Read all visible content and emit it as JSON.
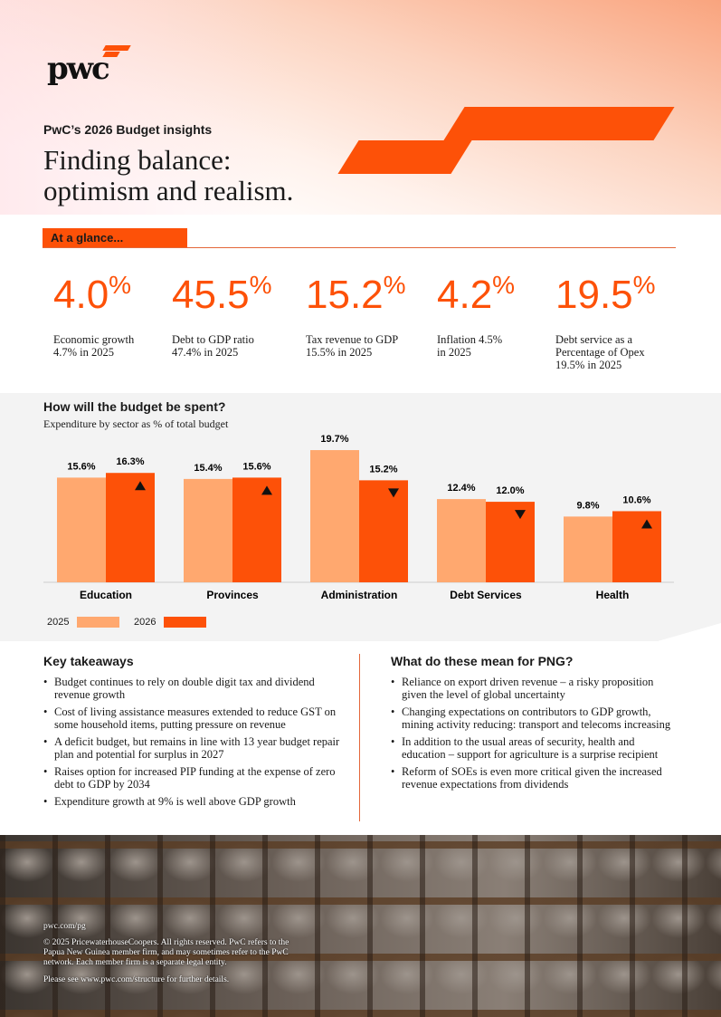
{
  "brand": {
    "logo_text": "pwc"
  },
  "header": {
    "kicker": "PwC’s 2026 Budget insights",
    "title_line1": "Finding balance:",
    "title_line2": "optimism and realism."
  },
  "glance": {
    "label": "At a glance...",
    "stats": [
      {
        "value": "4.0",
        "unit": "%",
        "label": "Economic growth\n4.7% in 2025"
      },
      {
        "value": "45.5",
        "unit": "%",
        "label": "Debt to GDP ratio\n47.4% in 2025"
      },
      {
        "value": "15.2",
        "unit": "%",
        "label": "Tax revenue to GDP\n15.5% in 2025"
      },
      {
        "value": "4.2",
        "unit": "%",
        "label": "Inflation 4.5%\nin 2025"
      },
      {
        "value": "19.5",
        "unit": "%",
        "label": "Debt service as a\nPercentage of Opex\n19.5% in 2025"
      }
    ]
  },
  "chart_data": {
    "type": "bar",
    "title": "How will the budget be spent?",
    "subtitle": "Expenditure by sector as % of total budget",
    "categories": [
      "Education",
      "Provinces",
      "Administration",
      "Debt Services",
      "Health"
    ],
    "series": [
      {
        "name": "2025",
        "color": "#ffa86f",
        "values": [
          15.6,
          15.4,
          19.7,
          12.4,
          9.8
        ],
        "labels": [
          "15.6%",
          "15.4%",
          "19.7%",
          "12.4%",
          "9.8%"
        ]
      },
      {
        "name": "2026",
        "color": "#fd5108",
        "values": [
          16.3,
          15.6,
          15.2,
          12.0,
          10.6
        ],
        "labels": [
          "16.3%",
          "15.6%",
          "15.2%",
          "12.0%",
          "10.6%"
        ],
        "trend": [
          "up",
          "up",
          "down",
          "down",
          "up"
        ]
      }
    ],
    "ylim": [
      0,
      20
    ],
    "legend": "bottom-left"
  },
  "takeaways": {
    "title": "Key takeaways",
    "items": [
      "Budget continues to rely on double digit tax and dividend revenue growth",
      "Cost of living assistance measures extended to reduce GST on some household items, putting pressure on revenue",
      "A deficit budget, but remains in line with 13 year budget repair plan and potential for surplus in 2027",
      "Raises option for increased PIP funding at the expense of zero debt to GDP by 2034",
      "Expenditure growth at 9% is well above GDP growth"
    ]
  },
  "png": {
    "title": "What do these mean for PNG?",
    "items": [
      "Reliance on export driven revenue – a risky proposition given the level of global uncertainty",
      "Changing expectations on contributors to GDP growth, mining activity reducing: transport and telecoms increasing",
      "In addition to the usual areas of security, health and education – support for agriculture is a surprise recipient",
      "Reform of SOEs is even more critical given the increased revenue expectations from dividends"
    ]
  },
  "footer": {
    "url": "pwc.com/pg",
    "copyright": "© 2025 PricewaterhouseCoopers. All rights reserved. PwC refers to the Papua New Guinea member firm, and may sometimes refer to the PwC network. Each member firm is a separate legal entity.",
    "structure": "Please see www.pwc.com/structure for further details."
  }
}
